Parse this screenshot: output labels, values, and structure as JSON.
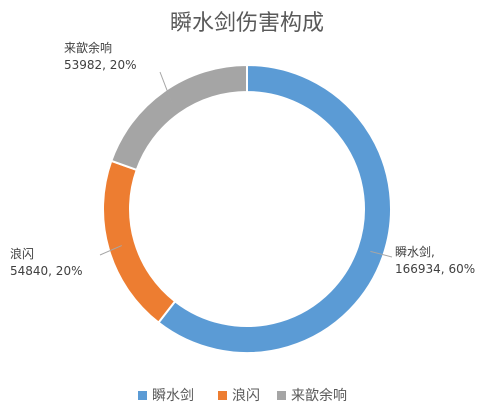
{
  "chart_data": {
    "type": "pie",
    "variant": "donut",
    "title": "瞬水剑伤害构成",
    "categories": [
      "瞬水剑",
      "浪闪",
      "来歆余响"
    ],
    "values": [
      166934,
      54840,
      53982
    ],
    "percent_labels": [
      "60%",
      "20%",
      "20%"
    ],
    "colors": [
      "#5b9bd5",
      "#ed7d31",
      "#a5a5a5"
    ],
    "legend_position": "bottom",
    "data_labels": [
      {
        "lines": [
          "瞬水剑,",
          "166934, 60%"
        ]
      },
      {
        "lines": [
          "浪闪",
          "54840, 20%"
        ]
      },
      {
        "lines": [
          "来歆余响",
          "53982, 20%"
        ]
      }
    ]
  }
}
